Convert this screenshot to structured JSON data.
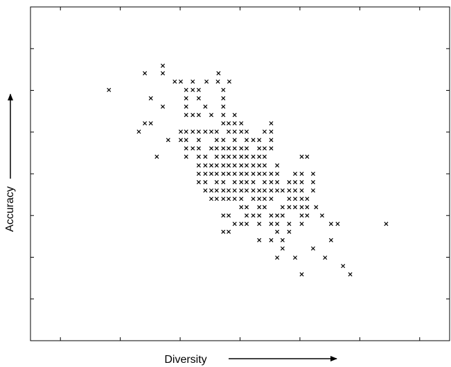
{
  "chart_data": {
    "type": "scatter",
    "color": "#000000",
    "marker": "x",
    "x_label": "Diversity",
    "y_label": "Accuracy",
    "xlim": [
      0,
      7
    ],
    "xticks": [
      0.5,
      1.5,
      2.5,
      3.5,
      4.5,
      5.5,
      6.5
    ],
    "ylim": [
      0,
      8
    ],
    "yticks": [
      1,
      2,
      3,
      4,
      5,
      6,
      7
    ],
    "x": [
      2.21,
      1.91,
      2.21,
      3.14,
      2.41,
      2.51,
      2.71,
      2.94,
      3.13,
      3.32,
      1.31,
      2.6,
      2.71,
      2.81,
      3.22,
      2.01,
      2.6,
      2.81,
      3.22,
      2.21,
      2.6,
      2.92,
      3.22,
      2.6,
      2.71,
      2.81,
      3.02,
      3.22,
      3.41,
      1.91,
      2.01,
      3.22,
      3.31,
      3.41,
      3.52,
      4.02,
      1.81,
      2.51,
      2.6,
      2.71,
      2.81,
      2.92,
      3.02,
      3.11,
      3.31,
      3.41,
      3.52,
      3.61,
      3.91,
      4.02,
      2.3,
      2.51,
      2.6,
      2.81,
      3.11,
      3.22,
      3.41,
      3.61,
      3.72,
      3.82,
      4.02,
      2.6,
      2.71,
      2.81,
      3.02,
      3.11,
      3.22,
      3.31,
      3.41,
      3.52,
      3.61,
      3.82,
      3.91,
      4.02,
      2.11,
      2.6,
      2.81,
      2.92,
      3.11,
      3.22,
      3.31,
      3.41,
      3.52,
      3.61,
      3.72,
      3.82,
      3.91,
      4.53,
      4.62,
      2.81,
      2.92,
      3.02,
      3.11,
      3.22,
      3.31,
      3.41,
      3.52,
      3.61,
      3.72,
      3.82,
      3.91,
      4.12,
      2.81,
      2.92,
      3.02,
      3.11,
      3.22,
      3.31,
      3.41,
      3.52,
      3.61,
      3.72,
      3.82,
      3.91,
      4.02,
      4.12,
      4.42,
      4.53,
      4.72,
      2.81,
      2.92,
      3.11,
      3.22,
      3.41,
      3.52,
      3.61,
      3.72,
      3.91,
      4.02,
      4.12,
      4.32,
      4.42,
      4.53,
      4.72,
      2.92,
      3.02,
      3.11,
      3.22,
      3.31,
      3.41,
      3.52,
      3.61,
      3.72,
      3.82,
      3.91,
      4.02,
      4.12,
      4.21,
      4.32,
      4.42,
      4.53,
      4.72,
      3.02,
      3.11,
      3.22,
      3.31,
      3.41,
      3.52,
      3.72,
      3.82,
      3.91,
      4.02,
      4.32,
      4.42,
      4.53,
      4.62,
      3.52,
      3.61,
      3.82,
      3.91,
      4.21,
      4.32,
      4.42,
      4.53,
      4.62,
      4.77,
      3.22,
      3.31,
      3.61,
      3.72,
      3.82,
      4.02,
      4.12,
      4.21,
      4.53,
      4.62,
      4.87,
      3.41,
      3.52,
      3.61,
      3.82,
      4.02,
      4.12,
      4.32,
      4.53,
      5.02,
      5.13,
      5.94,
      3.22,
      3.31,
      4.12,
      4.32,
      3.82,
      4.02,
      4.21,
      5.02,
      4.21,
      4.72,
      4.12,
      4.42,
      4.92,
      5.22,
      4.53,
      5.34
    ],
    "values": [
      6.59,
      6.41,
      6.41,
      6.41,
      6.21,
      6.21,
      6.21,
      6.21,
      6.21,
      6.21,
      6.01,
      6.01,
      6.01,
      6.01,
      6.01,
      5.81,
      5.81,
      5.81,
      5.81,
      5.61,
      5.61,
      5.61,
      5.61,
      5.41,
      5.41,
      5.41,
      5.41,
      5.41,
      5.41,
      5.21,
      5.21,
      5.21,
      5.21,
      5.21,
      5.21,
      5.21,
      5.01,
      5.01,
      5.01,
      5.01,
      5.01,
      5.01,
      5.01,
      5.01,
      5.01,
      5.01,
      5.01,
      5.01,
      5.01,
      5.01,
      4.81,
      4.81,
      4.81,
      4.81,
      4.81,
      4.81,
      4.81,
      4.81,
      4.81,
      4.81,
      4.81,
      4.61,
      4.61,
      4.61,
      4.61,
      4.61,
      4.61,
      4.61,
      4.61,
      4.61,
      4.61,
      4.61,
      4.61,
      4.61,
      4.41,
      4.41,
      4.41,
      4.41,
      4.41,
      4.41,
      4.41,
      4.41,
      4.41,
      4.41,
      4.41,
      4.41,
      4.41,
      4.41,
      4.41,
      4.2,
      4.2,
      4.2,
      4.2,
      4.2,
      4.2,
      4.2,
      4.2,
      4.2,
      4.2,
      4.2,
      4.2,
      4.2,
      4.0,
      4.0,
      4.0,
      4.0,
      4.0,
      4.0,
      4.0,
      4.0,
      4.0,
      4.0,
      4.0,
      4.0,
      4.0,
      4.0,
      4.0,
      4.0,
      4.0,
      3.8,
      3.8,
      3.8,
      3.8,
      3.8,
      3.8,
      3.8,
      3.8,
      3.8,
      3.8,
      3.8,
      3.8,
      3.8,
      3.8,
      3.8,
      3.6,
      3.6,
      3.6,
      3.6,
      3.6,
      3.6,
      3.6,
      3.6,
      3.6,
      3.6,
      3.6,
      3.6,
      3.6,
      3.6,
      3.6,
      3.6,
      3.6,
      3.6,
      3.4,
      3.4,
      3.4,
      3.4,
      3.4,
      3.4,
      3.4,
      3.4,
      3.4,
      3.4,
      3.4,
      3.4,
      3.4,
      3.4,
      3.2,
      3.2,
      3.2,
      3.2,
      3.2,
      3.2,
      3.2,
      3.2,
      3.2,
      3.2,
      3.0,
      3.0,
      3.0,
      3.0,
      3.0,
      3.0,
      3.0,
      3.0,
      3.0,
      3.0,
      3.0,
      2.8,
      2.8,
      2.8,
      2.8,
      2.8,
      2.8,
      2.8,
      2.8,
      2.8,
      2.8,
      2.8,
      2.61,
      2.61,
      2.61,
      2.61,
      2.41,
      2.41,
      2.41,
      2.41,
      2.21,
      2.21,
      1.99,
      1.99,
      1.99,
      1.79,
      1.59,
      1.59
    ]
  }
}
